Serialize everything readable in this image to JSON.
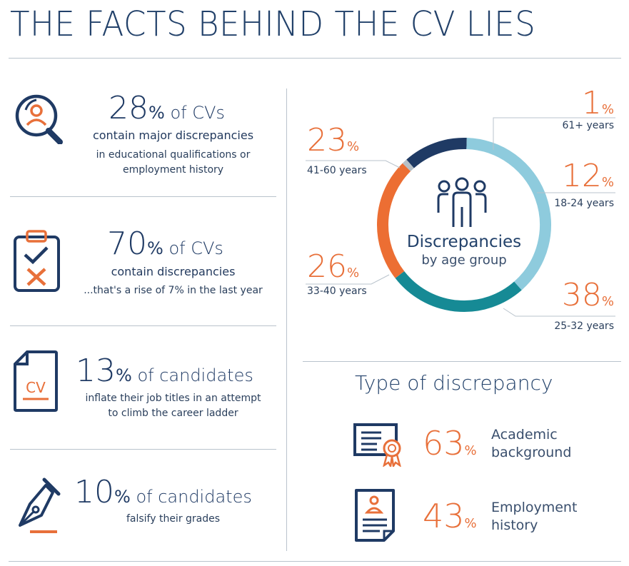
{
  "title": "THE FACTS BEHIND THE CV LIES",
  "stats": [
    {
      "value": "28",
      "pct": "%",
      "suffix": " of CVs",
      "line1": "contain major discrepancies",
      "line2": "in educational qualifications or",
      "line3": "employment history"
    },
    {
      "value": "70",
      "pct": "%",
      "suffix": " of CVs",
      "line1": "contain discrepancies",
      "line2": "...that's a rise of 7% in the last year"
    },
    {
      "value": "13",
      "pct": "%",
      "suffix": " of candidates",
      "line1": "inflate their job titles in an attempt",
      "line2": "to climb the career ladder"
    },
    {
      "value": "10",
      "pct": "%",
      "suffix": " of candidates",
      "line1": "falsify their grades"
    }
  ],
  "chart_data": {
    "type": "pie",
    "title": "Discrepancies",
    "subtitle": "by age group",
    "slices": [
      {
        "label": "61+ years",
        "value": 1,
        "color": "#b7c0c6"
      },
      {
        "label": "18-24 years",
        "value": 12,
        "color": "#1f3a64"
      },
      {
        "label": "25-32 years",
        "value": 38,
        "color": "#8ecbdd"
      },
      {
        "label": "33-40 years",
        "value": 26,
        "color": "#168a95"
      },
      {
        "label": "41-60 years",
        "value": 23,
        "color": "#ec6e33"
      }
    ]
  },
  "age_labels": [
    {
      "value": "1",
      "pct": "%",
      "label": "61+ years"
    },
    {
      "value": "12",
      "pct": "%",
      "label": "18-24 years"
    },
    {
      "value": "38",
      "pct": "%",
      "label": "25-32 years"
    },
    {
      "value": "26",
      "pct": "%",
      "label": "33-40 years"
    },
    {
      "value": "23",
      "pct": "%",
      "label": "41-60 years"
    }
  ],
  "type_section": {
    "title": "Type of discrepancy",
    "items": [
      {
        "value": "63",
        "pct": "%",
        "line1": "Academic",
        "line2": "background"
      },
      {
        "value": "43",
        "pct": "%",
        "line1": "Employment",
        "line2": "history"
      }
    ]
  },
  "colors": {
    "navy": "#1f3a64",
    "orange": "#e8703a",
    "teal": "#168a95",
    "light_blue": "#8ecbdd",
    "grey": "#b7c0c6"
  },
  "icons": [
    "search-person-icon",
    "clipboard-checklist-icon",
    "cv-document-icon",
    "fountain-pen-icon",
    "people-group-icon",
    "certificate-award-icon",
    "employment-record-icon"
  ]
}
